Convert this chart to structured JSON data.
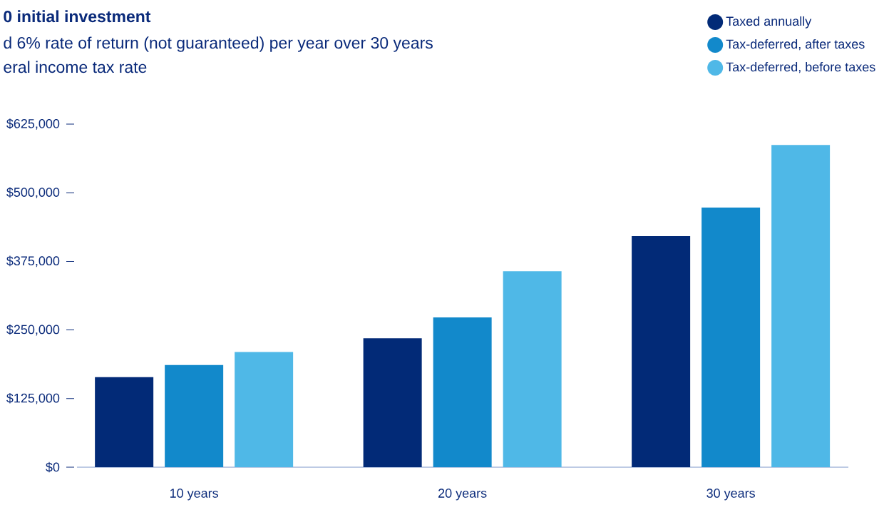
{
  "chart_data": {
    "type": "bar",
    "title": "0 initial investment",
    "subtitle": "d 6% rate of return (not guaranteed) per year over 30 years",
    "annotations": [
      "eral income tax rate"
    ],
    "categories": [
      "10 years",
      "20 years",
      "30 years"
    ],
    "series": [
      {
        "name": "Taxed annually",
        "color": "#022a77",
        "values": [
          164000,
          235000,
          421000
        ]
      },
      {
        "name": "Tax-deferred, after taxes",
        "color": "#1289cb",
        "values": [
          186000,
          273000,
          473000
        ]
      },
      {
        "name": "Tax-deferred, before taxes",
        "color": "#4fb8e7",
        "values": [
          210000,
          357000,
          587000
        ]
      }
    ],
    "ylim": [
      0,
      625000
    ],
    "yticks": [
      {
        "value": 0,
        "label": "$0"
      },
      {
        "value": 125000,
        "label": "$125,000"
      },
      {
        "value": 250000,
        "label": "$250,000"
      },
      {
        "value": 375000,
        "label": "$375,000"
      },
      {
        "value": 500000,
        "label": "$500,000"
      },
      {
        "value": 625000,
        "label": "$625,000"
      }
    ],
    "legend": "top right"
  }
}
